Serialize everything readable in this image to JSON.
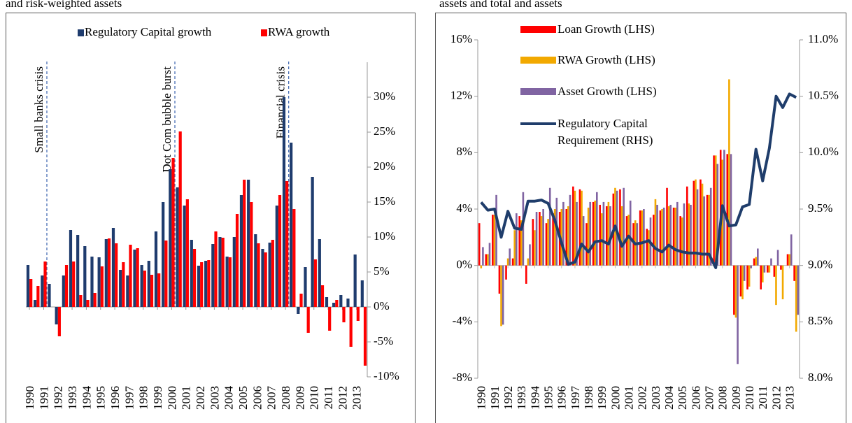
{
  "chart_data": [
    {
      "type": "bar",
      "title": "and risk-weighted assets",
      "categories": [
        "1990",
        null,
        "1991",
        null,
        "1992",
        null,
        "1993",
        null,
        "1994",
        null,
        "1995",
        null,
        "1996",
        null,
        "1997",
        null,
        "1998",
        null,
        "1999",
        null,
        "2000",
        null,
        "2001",
        null,
        "2002",
        null,
        "2003",
        null,
        "2004",
        null,
        "2005",
        null,
        "2006",
        null,
        "2007",
        null,
        "2008",
        null,
        "2009",
        null,
        "2010",
        null,
        "2011",
        null,
        "2012",
        null,
        "2013",
        null
      ],
      "series": [
        {
          "name": "Regulatory Capital growth",
          "color": "#1f3c6e",
          "values": [
            6,
            1,
            4.5,
            3.3,
            -2.5,
            4.5,
            11,
            10.3,
            8.7,
            7.2,
            7.1,
            9.7,
            11.3,
            5.3,
            4.5,
            8.2,
            6,
            6.6,
            10.8,
            15,
            19.7,
            17.1,
            14.5,
            9.6,
            5.9,
            6.6,
            9,
            10,
            7.2,
            10,
            16,
            18.2,
            10.4,
            8.3,
            9.2,
            14.5,
            30,
            23.5,
            -1,
            5.7,
            18.6,
            9.7,
            1.4,
            0.6,
            1.7,
            1.2,
            7.5,
            3.8
          ]
        },
        {
          "name": "RWA growth",
          "color": "#ff0000",
          "values": [
            4,
            3,
            6.5,
            0,
            -4.2,
            6,
            6.5,
            1.7,
            1,
            2,
            5.8,
            9.8,
            9.1,
            6.4,
            8.9,
            8.4,
            5.2,
            4.6,
            4.8,
            9.5,
            21.3,
            25.1,
            15.4,
            8.3,
            6.4,
            6.7,
            10.8,
            9.9,
            7.1,
            13.3,
            18.2,
            15,
            9.1,
            7.8,
            9.6,
            16,
            18,
            14,
            1.9,
            -3.7,
            6.8,
            3.1,
            -3.4,
            1,
            -2.2,
            -5.7,
            -2,
            -8.4
          ]
        }
      ],
      "ylim": [
        -10,
        35
      ],
      "yticks": [
        {
          "value": -10,
          "label": "-10%"
        },
        {
          "value": -5,
          "label": "-5%"
        },
        {
          "value": 0,
          "label": "0%"
        },
        {
          "value": 5,
          "label": "5%"
        },
        {
          "value": 10,
          "label": "10%"
        },
        {
          "value": 15,
          "label": "15%"
        },
        {
          "value": 20,
          "label": "20%"
        },
        {
          "value": 25,
          "label": "25%"
        },
        {
          "value": 30,
          "label": "30%"
        }
      ],
      "annotations": [
        {
          "text": "Small banks crisis",
          "category": "1991"
        },
        {
          "text": "Dot Com bubble burst",
          "category": "2000"
        },
        {
          "text": "Financial crisis",
          "category": "2008"
        }
      ],
      "grid": false
    },
    {
      "type": "bar",
      "title": "assets and total and assets",
      "categories": [
        "1990",
        null,
        "1991",
        null,
        "1992",
        null,
        "1993",
        null,
        "1994",
        null,
        "1995",
        null,
        "1996",
        null,
        "1997",
        null,
        "1998",
        null,
        "1999",
        null,
        "2000",
        null,
        "2001",
        null,
        "2002",
        null,
        "2003",
        null,
        "2004",
        null,
        "2005",
        null,
        "2006",
        null,
        "2007",
        null,
        "2008",
        null,
        "2009",
        null,
        "2010",
        null,
        "2011",
        null,
        "2012",
        null,
        "2013",
        null
      ],
      "series": [
        {
          "name": "Loan Growth (LHS)",
          "color": "#ff0000",
          "values": [
            3,
            0.8,
            3.6,
            -2,
            -1,
            0.5,
            3.5,
            -1.3,
            3.3,
            3.8,
            3,
            3.7,
            3.8,
            4,
            5.6,
            5.4,
            3,
            4.5,
            4.3,
            4.2,
            5.1,
            5.4,
            3.5,
            3,
            3.9,
            2.6,
            3.6,
            3.9,
            5.5,
            4.1,
            3.5,
            5.6,
            6,
            6.1,
            5,
            7.8,
            8.2,
            7.9,
            -3.5,
            -2.2,
            -1.7,
            0.5,
            -1.7,
            -0.5,
            -0.8,
            -0.3,
            0.8,
            -1.1
          ]
        },
        {
          "name": "RWA Growth (LHS)",
          "color": "#f2a900",
          "values": [
            -0.2,
            0.8,
            3.6,
            -4.3,
            0.5,
            2.5,
            3.2,
            0.5,
            2.5,
            3.5,
            3.3,
            4,
            4,
            4.2,
            5.3,
            5.3,
            4.1,
            4.6,
            3.7,
            4.5,
            5.5,
            4.2,
            3.6,
            3.2,
            3.9,
            2.5,
            4.7,
            4,
            4.2,
            4.1,
            3.4,
            4.4,
            6.1,
            5.8,
            5,
            7.8,
            7.5,
            13.2,
            -3.7,
            -2.4,
            -1.5,
            0.6,
            -1.2,
            -0.5,
            -2.8,
            -2.4,
            0.8,
            -4.7
          ]
        },
        {
          "name": "Asset Growth (LHS)",
          "color": "#8064a2",
          "values": [
            1.3,
            1.6,
            5,
            -4.2,
            1.2,
            3.7,
            5.2,
            1.5,
            3.8,
            4,
            5.5,
            4.8,
            4.5,
            5,
            4.5,
            3.5,
            4.5,
            5.2,
            4.5,
            4.2,
            5.3,
            5.5,
            4.6,
            3,
            4,
            3.4,
            4.3,
            4.1,
            4.3,
            4.5,
            4.4,
            4.3,
            5.4,
            4.9,
            5.5,
            7.2,
            8.2,
            7.9,
            -7,
            -1.1,
            -0.2,
            1.2,
            -0.5,
            0.5,
            1.1,
            0,
            2.2,
            -3.5
          ]
        },
        {
          "name": "Regulatory Capital Requirement (RHS)",
          "type": "line",
          "axis": "y2",
          "color": "#1f3d6b",
          "values": [
            9.56,
            9.49,
            9.5,
            9.25,
            9.48,
            9.33,
            9.32,
            9.57,
            9.57,
            9.58,
            9.55,
            9.4,
            9.2,
            9.01,
            9.03,
            9.19,
            9.12,
            9.21,
            9.22,
            9.19,
            9.35,
            9.17,
            9.26,
            9.19,
            9.2,
            9.22,
            9.15,
            9.12,
            9.18,
            9.14,
            9.12,
            9.11,
            9.11,
            9.1,
            9.1,
            8.98,
            9.53,
            9.35,
            9.36,
            9.52,
            9.54,
            10.03,
            9.75,
            10.04,
            10.5,
            10.4,
            10.52,
            10.49
          ]
        }
      ],
      "ylim": [
        -8,
        16
      ],
      "yticks": [
        {
          "value": -8,
          "label": "-8%"
        },
        {
          "value": -4,
          "label": "-4%"
        },
        {
          "value": 0,
          "label": "0%"
        },
        {
          "value": 4,
          "label": "4%"
        },
        {
          "value": 8,
          "label": "8%"
        },
        {
          "value": 12,
          "label": "12%"
        },
        {
          "value": 16,
          "label": "16%"
        }
      ],
      "y2lim": [
        8,
        11
      ],
      "y2ticks": [
        {
          "value": 8,
          "label": "8.0%"
        },
        {
          "value": 8.5,
          "label": "8.5%"
        },
        {
          "value": 9,
          "label": "9.0%"
        },
        {
          "value": 9.5,
          "label": "9.5%"
        },
        {
          "value": 10,
          "label": "10.0%"
        },
        {
          "value": 10.5,
          "label": "10.5%"
        },
        {
          "value": 11,
          "label": "11.0%"
        }
      ],
      "grid": false
    }
  ]
}
